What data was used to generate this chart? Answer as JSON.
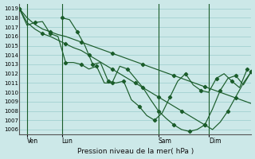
{
  "xlabel": "Pression niveau de la mer( hPa )",
  "bg_color": "#cce8e8",
  "grid_color": "#99cccc",
  "line_color": "#1a5c2a",
  "ylim": [
    1005.5,
    1019.5
  ],
  "yticks": [
    1006,
    1007,
    1008,
    1009,
    1010,
    1011,
    1012,
    1013,
    1014,
    1015,
    1016,
    1017,
    1018,
    1019
  ],
  "xlim": [
    0,
    60
  ],
  "xtick_labels": [
    "Ven",
    "Lun",
    "Sam",
    "Dim"
  ],
  "xtick_positions": [
    2,
    11,
    36,
    49
  ],
  "series1_x": [
    0,
    2,
    4,
    6,
    8,
    10,
    12,
    14,
    16,
    18,
    20,
    22,
    24,
    26,
    28,
    30,
    32,
    34,
    36,
    38,
    40,
    42,
    44,
    46,
    48,
    50,
    52,
    54,
    56,
    58,
    60
  ],
  "series1_y": [
    1019.0,
    1018.0,
    1017.3,
    1016.8,
    1016.5,
    1016.2,
    1016.0,
    1015.7,
    1015.4,
    1015.1,
    1014.8,
    1014.5,
    1014.2,
    1013.9,
    1013.6,
    1013.3,
    1013.0,
    1012.7,
    1012.4,
    1012.1,
    1011.8,
    1011.5,
    1011.2,
    1010.9,
    1010.6,
    1010.3,
    1010.0,
    1009.7,
    1009.4,
    1009.1,
    1008.8
  ],
  "series2_x": [
    0,
    2,
    4,
    6,
    8,
    10,
    12,
    14,
    16,
    18,
    20,
    22,
    24,
    26,
    28,
    30,
    32,
    34,
    36,
    38,
    40,
    42,
    44,
    46,
    48,
    50,
    52,
    54,
    56,
    58,
    60
  ],
  "series2_y": [
    1019.0,
    1017.5,
    1016.8,
    1016.3,
    1016.0,
    1015.6,
    1015.2,
    1014.8,
    1014.5,
    1014.0,
    1013.5,
    1013.0,
    1012.5,
    1012.0,
    1011.5,
    1011.0,
    1010.5,
    1010.0,
    1009.5,
    1009.0,
    1008.5,
    1008.0,
    1007.5,
    1007.0,
    1006.5,
    1006.0,
    1006.8,
    1008.0,
    1009.5,
    1011.0,
    1012.2
  ],
  "series3_x": [
    0,
    2,
    4,
    6,
    8,
    10,
    12,
    14,
    16,
    18,
    20,
    22,
    24,
    26,
    28,
    30,
    32,
    34,
    36,
    38,
    40,
    42,
    44,
    46,
    48,
    50,
    52,
    54,
    56,
    58,
    60
  ],
  "series3_y": [
    1019.0,
    1017.2,
    1017.5,
    1017.6,
    1016.3,
    1016.0,
    1013.2,
    1013.2,
    1013.0,
    1012.5,
    1012.8,
    1011.0,
    1011.0,
    1012.8,
    1012.5,
    1011.5,
    1010.5,
    1009.2,
    1008.0,
    1007.2,
    1006.5,
    1006.0,
    1005.8,
    1006.0,
    1006.5,
    1008.2,
    1010.2,
    1011.5,
    1011.8,
    1010.8,
    1012.2
  ],
  "series4_x": [
    11,
    13,
    15,
    17,
    19,
    21,
    23,
    25,
    27,
    29,
    31,
    33,
    35,
    37,
    39,
    41,
    43,
    45,
    47,
    49,
    51,
    53,
    55,
    57,
    59
  ],
  "series4_y": [
    1018.0,
    1017.8,
    1016.5,
    1015.0,
    1013.0,
    1013.2,
    1011.2,
    1011.0,
    1011.2,
    1009.2,
    1008.5,
    1007.5,
    1007.0,
    1007.8,
    1009.5,
    1011.2,
    1012.0,
    1010.8,
    1010.2,
    1010.0,
    1011.5,
    1012.0,
    1011.2,
    1010.5,
    1012.5
  ]
}
